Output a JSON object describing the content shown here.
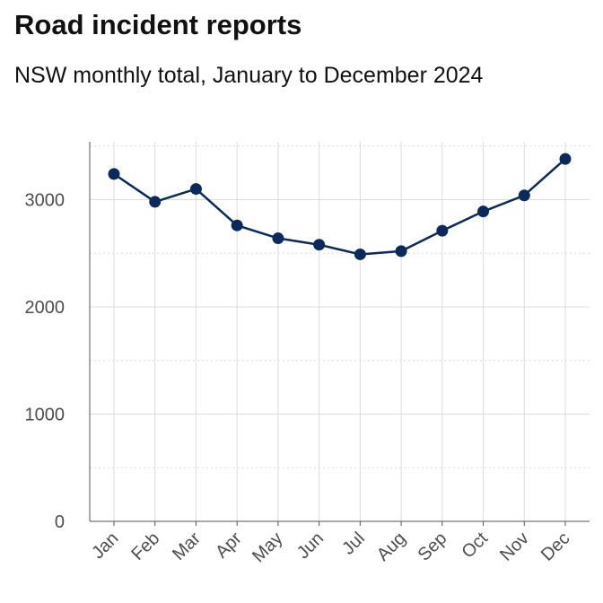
{
  "chart_data": {
    "type": "line",
    "title": "Road incident reports",
    "subtitle": "NSW monthly total, January to December 2024",
    "xlabel": "",
    "ylabel": "",
    "categories": [
      "Jan",
      "Feb",
      "Mar",
      "Apr",
      "May",
      "Jun",
      "Jul",
      "Aug",
      "Sep",
      "Oct",
      "Nov",
      "Dec"
    ],
    "values": [
      3240,
      2980,
      3100,
      2760,
      2640,
      2580,
      2490,
      2520,
      2710,
      2890,
      3040,
      3380
    ],
    "ylim": [
      0,
      3540
    ],
    "yticks": [
      0,
      1000,
      2000,
      3000
    ],
    "grid": true,
    "legend": "none",
    "colors": {
      "line": "#0b2a5b",
      "grid": "#dcdcdc",
      "axis": "#555555",
      "text": "#111111",
      "tick_text": "#4d4d4d"
    }
  }
}
